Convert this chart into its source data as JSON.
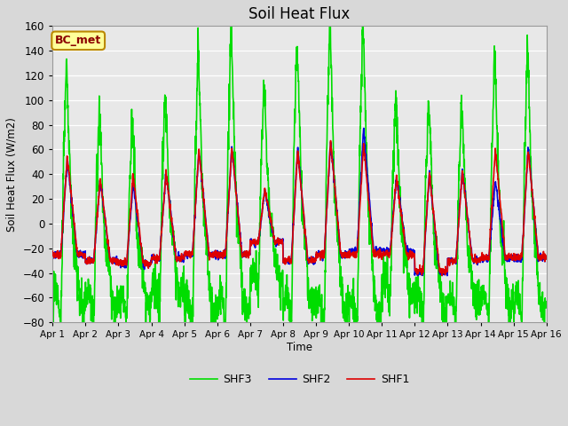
{
  "title": "Soil Heat Flux",
  "ylabel": "Soil Heat Flux (W/m2)",
  "xlabel": "Time",
  "ylim": [
    -80,
    160
  ],
  "yticks": [
    -80,
    -60,
    -40,
    -20,
    0,
    20,
    40,
    60,
    80,
    100,
    120,
    140,
    160
  ],
  "xlim_days": [
    0,
    15
  ],
  "xtick_labels": [
    "Apr 1",
    "Apr 2",
    "Apr 3",
    "Apr 4",
    "Apr 5",
    "Apr 6",
    "Apr 7",
    "Apr 8",
    "Apr 9",
    "Apr 10",
    "Apr 11",
    "Apr 12",
    "Apr 13",
    "Apr 14",
    "Apr 15",
    "Apr 16"
  ],
  "color_shf1": "#dd0000",
  "color_shf2": "#0000dd",
  "color_shf3": "#00dd00",
  "plot_bg": "#e8e8e8",
  "fig_bg": "#d8d8d8",
  "annotation_text": "BC_met",
  "annotation_bg": "#ffff99",
  "annotation_border": "#bb8800",
  "legend_labels": [
    "SHF1",
    "SHF2",
    "SHF3"
  ],
  "lw_shf12": 1.2,
  "lw_shf3": 1.2,
  "points_per_day": 144,
  "num_days": 15,
  "shf1_daily_peaks": [
    55,
    37,
    40,
    42,
    60,
    62,
    28,
    60,
    67,
    65,
    38,
    42,
    43,
    60,
    60
  ],
  "shf1_daily_troughs": [
    -25,
    -30,
    -32,
    -28,
    -25,
    -25,
    -15,
    -30,
    -25,
    -25,
    -25,
    -38,
    -30,
    -27,
    -27
  ],
  "shf2_daily_peaks": [
    52,
    35,
    32,
    42,
    60,
    63,
    27,
    62,
    67,
    78,
    38,
    42,
    43,
    35,
    62
  ],
  "shf2_daily_troughs": [
    -25,
    -30,
    -33,
    -28,
    -25,
    -25,
    -15,
    -30,
    -25,
    -22,
    -22,
    -40,
    -30,
    -28,
    -28
  ],
  "shf3_daily_peaks": [
    110,
    73,
    67,
    91,
    125,
    145,
    100,
    130,
    145,
    148,
    85,
    85,
    82,
    120,
    126
  ],
  "shf3_daily_troughs": [
    -62,
    -60,
    -62,
    -53,
    -68,
    -67,
    -42,
    -63,
    -65,
    -68,
    -50,
    -65,
    -62,
    -62,
    -67
  ],
  "shf3_extra_peaks": [
    20,
    20,
    22,
    18,
    20,
    22,
    15,
    20,
    22,
    20,
    18,
    20,
    18,
    20,
    20
  ]
}
